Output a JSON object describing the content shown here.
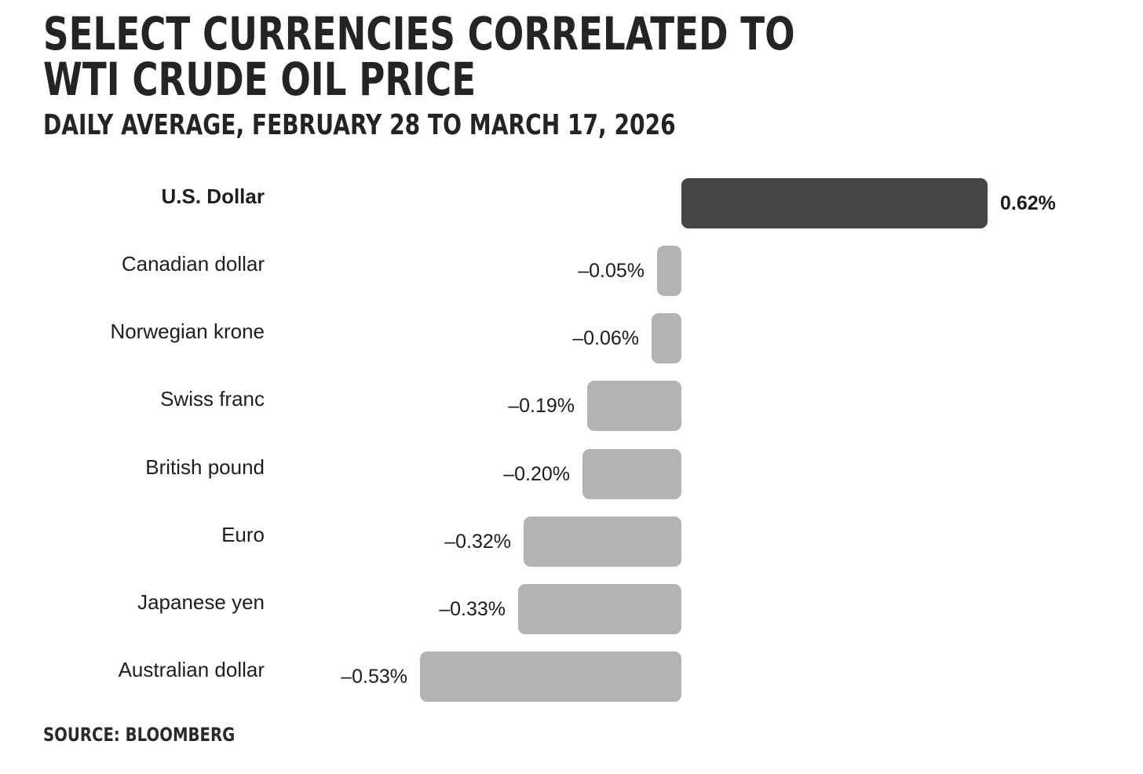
{
  "header": {
    "title_lines": [
      "SELECT CURRENCIES CORRELATED TO",
      "WTI CRUDE OIL PRICE"
    ],
    "subtitle": "DAILY AVERAGE, FEBRUARY 28 TO MARCH 17, 2026"
  },
  "footer": {
    "source": "SOURCE: BLOOMBERG"
  },
  "chart_data": {
    "type": "bar",
    "orientation": "horizontal",
    "title": "SELECT CURRENCIES CORRELATED TO WTI CRUDE OIL PRICE",
    "subtitle": "DAILY AVERAGE, FEBRUARY 28 TO MARCH 17, 2026",
    "source": "SOURCE: BLOOMBERG",
    "unit": "%",
    "categories": [
      "U.S. Dollar",
      "Canadian dollar",
      "Norwegian krone",
      "Swiss franc",
      "British pound",
      "Euro",
      "Japanese yen",
      "Australian dollar"
    ],
    "values": [
      0.62,
      -0.05,
      -0.06,
      -0.19,
      -0.2,
      -0.32,
      -0.33,
      -0.53
    ],
    "value_labels": [
      "0.62%",
      "–0.05%",
      "–0.06%",
      "–0.19%",
      "–0.20%",
      "–0.32%",
      "–0.33%",
      "–0.53%"
    ],
    "emphasized_index": 0,
    "colors": {
      "positive_bar": "#474446",
      "negative_bar": "#b4b2b3",
      "text": "#1e1e1e"
    },
    "axis": {
      "baseline_value": 0,
      "gridlines": false,
      "axis_ticks_visible": false,
      "xlim": [
        -0.62,
        0.62
      ]
    },
    "value_label_position": "outside-end",
    "legend": "none"
  }
}
